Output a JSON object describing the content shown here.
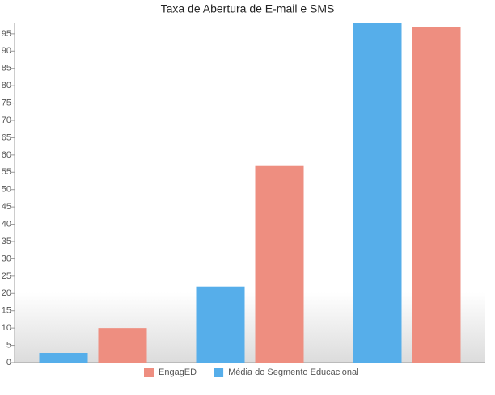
{
  "chart_data": {
    "type": "bar",
    "title": "Taxa de Abertura de E-mail e SMS",
    "categories": [
      null,
      null,
      null
    ],
    "series": [
      {
        "name": "EngagED",
        "color": "#ee8e80",
        "values": [
          10,
          57,
          97
        ]
      },
      {
        "name": "Média do Segmento Educacional",
        "color": "#56aeea",
        "values": [
          2.8,
          22,
          98
        ]
      }
    ],
    "ylim": [
      0,
      98
    ],
    "yticks": [
      0,
      5,
      10,
      15,
      20,
      25,
      30,
      35,
      40,
      45,
      50,
      55,
      60,
      65,
      70,
      75,
      80,
      85,
      90,
      95
    ],
    "grid": false
  }
}
